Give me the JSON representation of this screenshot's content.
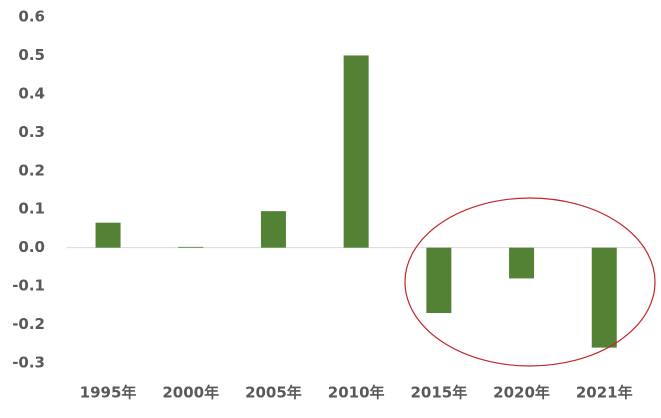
{
  "chart_data": {
    "type": "bar",
    "categories": [
      "1995年",
      "2000年",
      "2005年",
      "2010年",
      "2015年",
      "2020年",
      "2021年"
    ],
    "values": [
      0.065,
      0.002,
      0.095,
      0.5,
      -0.17,
      -0.08,
      -0.26
    ],
    "color": "#548235",
    "ylim": [
      -0.3,
      0.6
    ],
    "yticks": [
      -0.3,
      -0.2,
      -0.1,
      {
        "value": 0,
        "label": "0.0"
      },
      0.1,
      0.2,
      0.3,
      0.4,
      0.5,
      0.6
    ],
    "grid": false
  }
}
